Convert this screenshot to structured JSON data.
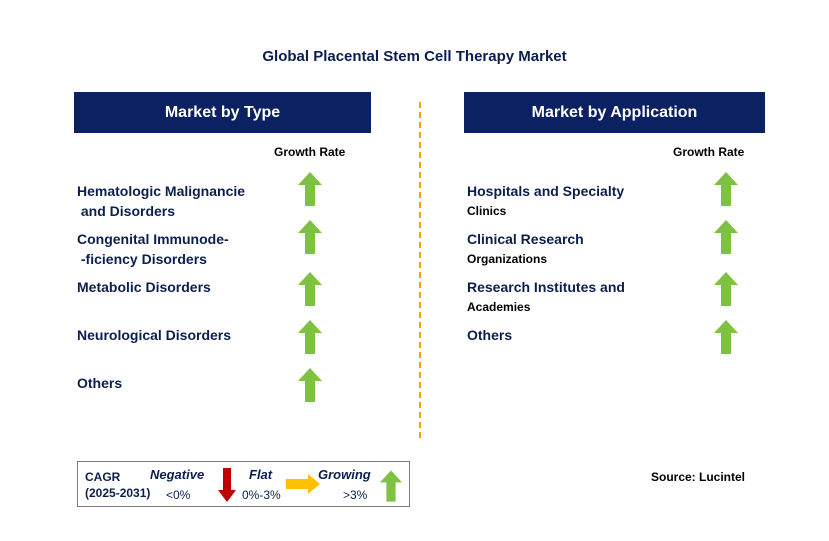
{
  "title": "Global Placental Stem Cell Therapy Market",
  "colors": {
    "header_bg": "#0b2161",
    "growing": "#7dc242",
    "negative": "#c00000",
    "flat": "#ffc000",
    "divider": "#f0a500"
  },
  "left_panel": {
    "header": "Market by Type",
    "growth_label": "Growth Rate",
    "items": [
      {
        "line1": "Hematologic Malignancie",
        "line2": " and Disorders",
        "trend": "growing"
      },
      {
        "line1": "Congenital Immunode-",
        "line2": " -ficiency Disorders",
        "trend": "growing"
      },
      {
        "line1": "Metabolic Disorders",
        "line2": "",
        "trend": "growing"
      },
      {
        "line1": "Neurological Disorders",
        "line2": "",
        "trend": "growing"
      },
      {
        "line1": "Others",
        "line2": "",
        "trend": "growing"
      }
    ]
  },
  "right_panel": {
    "header": "Market by Application",
    "growth_label": "Growth Rate",
    "items": [
      {
        "line1": "Hospitals and Specialty",
        "line2": "Clinics",
        "trend": "growing"
      },
      {
        "line1": "Clinical Research",
        "line2": "Organizations",
        "trend": "growing"
      },
      {
        "line1": "Research Institutes and",
        "line2": "Academies",
        "trend": "growing"
      },
      {
        "line1": "Others",
        "line2": "",
        "trend": "growing"
      }
    ]
  },
  "legend": {
    "cagr_line1": "CAGR",
    "cagr_line2": "(2025-2031)",
    "negative_title": "Negative",
    "negative_value": "<0%",
    "flat_title": "Flat",
    "flat_value": "0%-3%",
    "growing_title": "Growing",
    "growing_value": ">3%"
  },
  "source": "Source: Lucintel",
  "icons": {
    "growing": "up-arrow-icon",
    "negative": "down-arrow-icon",
    "flat": "right-arrow-icon"
  }
}
